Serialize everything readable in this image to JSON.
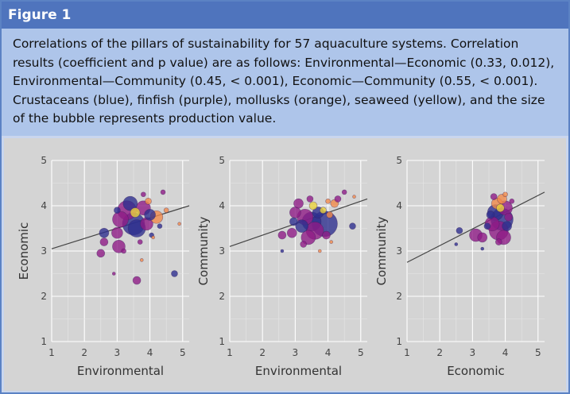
{
  "figure": {
    "label": "Figure 1",
    "caption": "Correlations of the pillars of sustainability for 57 aquaculture systems. Correlation results (coefficient and p value) are as follows: Environmental—Economic (0.33, 0.012), Environmental—Community (0.45, < 0.001), Economic—Community (0.55, < 0.001). Crustaceans (blue), finfish (purple), mollusks (orange), seaweed (yellow), and the size of the bubble represents production value."
  },
  "colors": {
    "header_bg": "#4f74bd",
    "caption_bg": "#aec5ea",
    "panel_bg": "#d4d4d4",
    "crustaceans": "#2e2f8f",
    "finfish": "#8e1c86",
    "mollusks": "#f08a4a",
    "seaweed": "#e8d23c",
    "trend_line": "#444444"
  },
  "chart_data": [
    {
      "type": "scatter",
      "xlabel": "Environmental",
      "ylabel": "Economic",
      "xlim": [
        1,
        5.2
      ],
      "ylim": [
        1,
        5
      ],
      "xticks": [
        "1",
        "2",
        "3",
        "4",
        "5"
      ],
      "yticks": [
        "1",
        "2",
        "3",
        "4",
        "5"
      ],
      "grid": true,
      "trend": {
        "x": [
          1,
          5.2
        ],
        "y": [
          3.05,
          4.0
        ]
      },
      "points": [
        {
          "x": 3.3,
          "y": 3.9,
          "s": 12,
          "g": "finfish"
        },
        {
          "x": 3.5,
          "y": 3.6,
          "s": 14,
          "g": "crustaceans"
        },
        {
          "x": 3.1,
          "y": 3.7,
          "s": 10,
          "g": "finfish"
        },
        {
          "x": 3.6,
          "y": 3.5,
          "s": 11,
          "g": "crustaceans"
        },
        {
          "x": 3.8,
          "y": 3.95,
          "s": 9,
          "g": "finfish"
        },
        {
          "x": 3.4,
          "y": 4.05,
          "s": 9,
          "g": "crustaceans"
        },
        {
          "x": 3.0,
          "y": 3.4,
          "s": 7,
          "g": "finfish"
        },
        {
          "x": 3.9,
          "y": 3.6,
          "s": 8,
          "g": "finfish"
        },
        {
          "x": 4.2,
          "y": 3.75,
          "s": 8,
          "g": "mollusks"
        },
        {
          "x": 4.0,
          "y": 3.8,
          "s": 7,
          "g": "crustaceans"
        },
        {
          "x": 2.6,
          "y": 3.4,
          "s": 6,
          "g": "crustaceans"
        },
        {
          "x": 2.6,
          "y": 3.2,
          "s": 5,
          "g": "finfish"
        },
        {
          "x": 2.5,
          "y": 2.95,
          "s": 5,
          "g": "finfish"
        },
        {
          "x": 3.05,
          "y": 3.1,
          "s": 8,
          "g": "finfish"
        },
        {
          "x": 3.2,
          "y": 3.0,
          "s": 3,
          "g": "finfish"
        },
        {
          "x": 3.6,
          "y": 2.35,
          "s": 5,
          "g": "finfish"
        },
        {
          "x": 2.9,
          "y": 2.5,
          "s": 2,
          "g": "finfish"
        },
        {
          "x": 4.4,
          "y": 4.3,
          "s": 3,
          "g": "finfish"
        },
        {
          "x": 4.1,
          "y": 3.3,
          "s": 2,
          "g": "mollusks"
        },
        {
          "x": 4.75,
          "y": 2.5,
          "s": 4,
          "g": "crustaceans"
        },
        {
          "x": 3.75,
          "y": 2.8,
          "s": 2,
          "g": "mollusks"
        },
        {
          "x": 4.5,
          "y": 3.9,
          "s": 3,
          "g": "mollusks"
        },
        {
          "x": 4.05,
          "y": 3.35,
          "s": 3,
          "g": "crustaceans"
        },
        {
          "x": 3.55,
          "y": 3.85,
          "s": 6,
          "g": "seaweed"
        },
        {
          "x": 3.8,
          "y": 4.25,
          "s": 3,
          "g": "finfish"
        },
        {
          "x": 4.3,
          "y": 3.55,
          "s": 3,
          "g": "crustaceans"
        },
        {
          "x": 3.7,
          "y": 3.2,
          "s": 3,
          "g": "finfish"
        },
        {
          "x": 4.9,
          "y": 3.6,
          "s": 2,
          "g": "mollusks"
        },
        {
          "x": 3.0,
          "y": 3.9,
          "s": 4,
          "g": "crustaceans"
        },
        {
          "x": 3.95,
          "y": 4.1,
          "s": 4,
          "g": "mollusks"
        }
      ]
    },
    {
      "type": "scatter",
      "xlabel": "Environmental",
      "ylabel": "Community",
      "xlim": [
        1,
        5.2
      ],
      "ylim": [
        1,
        5
      ],
      "xticks": [
        "1",
        "2",
        "3",
        "4",
        "5"
      ],
      "yticks": [
        "1",
        "2",
        "3",
        "4",
        "5"
      ],
      "grid": true,
      "trend": {
        "x": [
          1,
          5.2
        ],
        "y": [
          3.1,
          4.15
        ]
      },
      "points": [
        {
          "x": 3.9,
          "y": 3.6,
          "s": 16,
          "g": "crustaceans"
        },
        {
          "x": 3.5,
          "y": 3.65,
          "s": 12,
          "g": "crustaceans"
        },
        {
          "x": 3.3,
          "y": 3.75,
          "s": 10,
          "g": "finfish"
        },
        {
          "x": 3.6,
          "y": 3.45,
          "s": 11,
          "g": "finfish"
        },
        {
          "x": 3.2,
          "y": 3.55,
          "s": 8,
          "g": "crustaceans"
        },
        {
          "x": 3.0,
          "y": 3.85,
          "s": 7,
          "g": "finfish"
        },
        {
          "x": 3.4,
          "y": 3.3,
          "s": 9,
          "g": "finfish"
        },
        {
          "x": 2.9,
          "y": 3.4,
          "s": 6,
          "g": "finfish"
        },
        {
          "x": 3.1,
          "y": 4.05,
          "s": 6,
          "g": "finfish"
        },
        {
          "x": 2.6,
          "y": 3.35,
          "s": 5,
          "g": "finfish"
        },
        {
          "x": 3.7,
          "y": 3.85,
          "s": 7,
          "g": "crustaceans"
        },
        {
          "x": 4.2,
          "y": 4.05,
          "s": 5,
          "g": "mollusks"
        },
        {
          "x": 4.3,
          "y": 4.15,
          "s": 4,
          "g": "finfish"
        },
        {
          "x": 4.0,
          "y": 4.1,
          "s": 3,
          "g": "mollusks"
        },
        {
          "x": 4.5,
          "y": 4.3,
          "s": 3,
          "g": "finfish"
        },
        {
          "x": 4.75,
          "y": 3.55,
          "s": 4,
          "g": "crustaceans"
        },
        {
          "x": 2.6,
          "y": 3.0,
          "s": 2,
          "g": "crustaceans"
        },
        {
          "x": 3.75,
          "y": 3.0,
          "s": 2,
          "g": "mollusks"
        },
        {
          "x": 4.1,
          "y": 3.2,
          "s": 2,
          "g": "mollusks"
        },
        {
          "x": 3.55,
          "y": 4.0,
          "s": 5,
          "g": "seaweed"
        },
        {
          "x": 3.85,
          "y": 3.9,
          "s": 4,
          "g": "seaweed"
        },
        {
          "x": 4.8,
          "y": 4.2,
          "s": 2,
          "g": "mollusks"
        },
        {
          "x": 3.25,
          "y": 3.15,
          "s": 4,
          "g": "finfish"
        },
        {
          "x": 3.95,
          "y": 3.35,
          "s": 5,
          "g": "finfish"
        },
        {
          "x": 2.95,
          "y": 3.65,
          "s": 5,
          "g": "crustaceans"
        },
        {
          "x": 3.45,
          "y": 4.15,
          "s": 4,
          "g": "finfish"
        },
        {
          "x": 4.05,
          "y": 3.8,
          "s": 4,
          "g": "mollusks"
        }
      ]
    },
    {
      "type": "scatter",
      "xlabel": "Economic",
      "ylabel": "Community",
      "xlim": [
        1,
        5.2
      ],
      "ylim": [
        1,
        5
      ],
      "xticks": [
        "1",
        "2",
        "3",
        "4",
        "5"
      ],
      "yticks": [
        "1",
        "2",
        "3",
        "4",
        "5"
      ],
      "grid": true,
      "trend": {
        "x": [
          1,
          5.2
        ],
        "y": [
          2.75,
          4.3
        ]
      },
      "points": [
        {
          "x": 3.9,
          "y": 3.7,
          "s": 14,
          "g": "crustaceans"
        },
        {
          "x": 3.8,
          "y": 3.45,
          "s": 12,
          "g": "finfish"
        },
        {
          "x": 3.7,
          "y": 3.85,
          "s": 10,
          "g": "crustaceans"
        },
        {
          "x": 4.0,
          "y": 3.95,
          "s": 9,
          "g": "finfish"
        },
        {
          "x": 3.6,
          "y": 3.6,
          "s": 9,
          "g": "finfish"
        },
        {
          "x": 3.95,
          "y": 3.3,
          "s": 9,
          "g": "finfish"
        },
        {
          "x": 3.75,
          "y": 4.05,
          "s": 7,
          "g": "mollusks"
        },
        {
          "x": 3.9,
          "y": 4.15,
          "s": 6,
          "g": "mollusks"
        },
        {
          "x": 4.2,
          "y": 4.1,
          "s": 3,
          "g": "finfish"
        },
        {
          "x": 3.1,
          "y": 3.35,
          "s": 8,
          "g": "finfish"
        },
        {
          "x": 3.3,
          "y": 3.3,
          "s": 6,
          "g": "finfish"
        },
        {
          "x": 2.6,
          "y": 3.45,
          "s": 4,
          "g": "crustaceans"
        },
        {
          "x": 2.5,
          "y": 3.15,
          "s": 2,
          "g": "crustaceans"
        },
        {
          "x": 3.3,
          "y": 3.05,
          "s": 2,
          "g": "crustaceans"
        },
        {
          "x": 3.85,
          "y": 3.95,
          "s": 5,
          "g": "seaweed"
        },
        {
          "x": 3.55,
          "y": 3.8,
          "s": 5,
          "g": "crustaceans"
        },
        {
          "x": 4.05,
          "y": 3.55,
          "s": 6,
          "g": "crustaceans"
        },
        {
          "x": 3.65,
          "y": 4.2,
          "s": 4,
          "g": "finfish"
        },
        {
          "x": 3.45,
          "y": 3.55,
          "s": 4,
          "g": "crustaceans"
        },
        {
          "x": 4.1,
          "y": 3.75,
          "s": 5,
          "g": "finfish"
        },
        {
          "x": 3.8,
          "y": 3.2,
          "s": 4,
          "g": "finfish"
        },
        {
          "x": 4.0,
          "y": 4.25,
          "s": 3,
          "g": "mollusks"
        }
      ]
    }
  ]
}
